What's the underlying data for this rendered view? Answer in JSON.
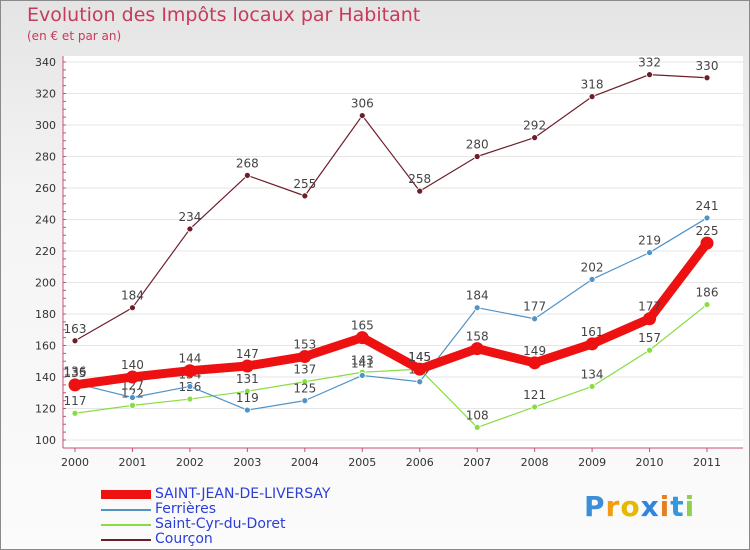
{
  "header": {
    "title": "Evolution des Impôts locaux par Habitant",
    "subtitle": "(en € et par an)"
  },
  "chart_data": {
    "type": "line",
    "title": "Evolution des Impôts locaux par Habitant",
    "subtitle": "(en € et par an)",
    "xlabel": "",
    "ylabel": "",
    "x": [
      "2000",
      "2001",
      "2002",
      "2003",
      "2004",
      "2005",
      "2006",
      "2007",
      "2008",
      "2009",
      "2010",
      "2011"
    ],
    "ylim": [
      100,
      340
    ],
    "yticks": [
      100,
      120,
      140,
      160,
      180,
      200,
      220,
      240,
      260,
      280,
      300,
      320,
      340
    ],
    "grid": true,
    "legend_position": "bottom-left",
    "series": [
      {
        "name": "SAINT-JEAN-DE-LIVERSAY",
        "color": "#ee1111",
        "values": [
          135,
          140,
          144,
          147,
          153,
          165,
          145,
          158,
          149,
          161,
          177,
          225
        ]
      },
      {
        "name": "Ferrières",
        "color": "#4f93c8",
        "values": [
          136,
          127,
          134,
          119,
          125,
          141,
          137,
          184,
          177,
          202,
          219,
          241
        ]
      },
      {
        "name": "Saint-Cyr-du-Doret",
        "color": "#88dd44",
        "values": [
          117,
          122,
          126,
          131,
          137,
          143,
          145,
          108,
          121,
          134,
          157,
          186
        ]
      },
      {
        "name": "Courçon",
        "color": "#6e1e2a",
        "values": [
          163,
          184,
          234,
          268,
          255,
          306,
          258,
          280,
          292,
          318,
          332,
          330
        ]
      }
    ]
  },
  "logo": {
    "text": "Proxiti",
    "colors": [
      "#3a8fd8",
      "#f39c12",
      "#e6b800",
      "#2e86de",
      "#e67e22",
      "#3498db",
      "#8fd14f"
    ]
  }
}
